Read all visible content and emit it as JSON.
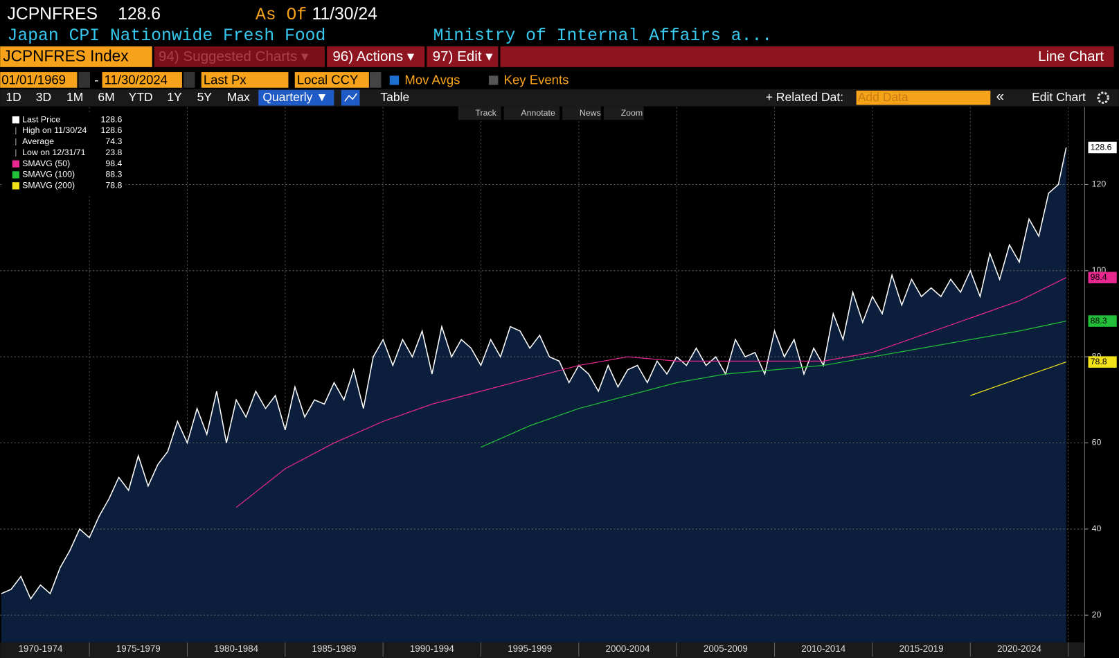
{
  "header": {
    "ticker": "JCPNFRES",
    "last_price": "128.6",
    "as_of_label": "As Of",
    "as_of_date": "11/30/24",
    "name": "Japan CPI Nationwide Fresh Food",
    "source": "Ministry of Internal Affairs a..."
  },
  "toolbar": {
    "security": "JCPNFRES Index",
    "suggested": "94) Suggested Charts ▾",
    "actions": "96) Actions ▾",
    "edit": "97) Edit ▾",
    "chart_type": "Line Chart",
    "start_date": "01/01/1969",
    "date_separator": "-",
    "end_date": "11/30/2024",
    "field": "Last Px",
    "currency": "Local CCY",
    "mov_avgs": "Mov Avgs",
    "key_events": "Key Events",
    "periods": [
      "1D",
      "3D",
      "1M",
      "6M",
      "YTD",
      "1Y",
      "5Y",
      "Max"
    ],
    "frequency": "Quarterly ▼",
    "table": "Table",
    "related": "+ Related Dat:",
    "add_data": "Add Data",
    "collapse": "«",
    "edit_chart": "Edit Chart"
  },
  "chart_tools": [
    "Track",
    "Annotate",
    "News",
    "Zoom"
  ],
  "legend": [
    {
      "label": "Last Price",
      "value": "128.6"
    },
    {
      "label": "High on 11/30/24",
      "value": "128.6"
    },
    {
      "label": "Average",
      "value": "74.3"
    },
    {
      "label": "Low on 12/31/71",
      "value": "23.8"
    },
    {
      "label": "SMAVG (50)",
      "value": "98.4"
    },
    {
      "label": "SMAVG (100)",
      "value": "88.3"
    },
    {
      "label": "SMAVG (200)",
      "value": "78.8"
    }
  ],
  "chart_data": {
    "type": "line",
    "xlim": [
      1970.44,
      2025.84
    ],
    "ylim": [
      13.7,
      138
    ],
    "xticks": [
      {
        "value": 1972.5,
        "label": "1970-1974"
      },
      {
        "value": 1977.5,
        "label": "1975-1979"
      },
      {
        "value": 1982.5,
        "label": "1980-1984"
      },
      {
        "value": 1987.5,
        "label": "1985-1989"
      },
      {
        "value": 1992.5,
        "label": "1990-1994"
      },
      {
        "value": 1997.5,
        "label": "1995-1999"
      },
      {
        "value": 2002.5,
        "label": "2000-2004"
      },
      {
        "value": 2007.5,
        "label": "2005-2009"
      },
      {
        "value": 2012.5,
        "label": "2010-2014"
      },
      {
        "value": 2017.5,
        "label": "2015-2019"
      },
      {
        "value": 2022.5,
        "label": "2020-2024"
      }
    ],
    "xgrid": [
      1975,
      1980,
      1985,
      1990,
      1995,
      2000,
      2005,
      2010,
      2015,
      2020,
      2025
    ],
    "yticks": [
      20,
      40,
      60,
      80,
      100,
      120
    ],
    "grid": true,
    "series": [
      {
        "name": "Last Price",
        "color": "#ffffff",
        "fill": "#0b1e3b",
        "x": [
          1970.5,
          1971,
          1971.5,
          1972,
          1972.5,
          1973,
          1973.5,
          1974,
          1974.5,
          1975,
          1975.5,
          1976,
          1976.5,
          1977,
          1977.5,
          1978,
          1978.5,
          1979,
          1979.5,
          1980,
          1980.5,
          1981,
          1981.5,
          1982,
          1982.5,
          1983,
          1983.5,
          1984,
          1984.5,
          1985,
          1985.5,
          1986,
          1986.5,
          1987,
          1987.5,
          1988,
          1988.5,
          1989,
          1989.5,
          1990,
          1990.5,
          1991,
          1991.5,
          1992,
          1992.5,
          1993,
          1993.5,
          1994,
          1994.5,
          1995,
          1995.5,
          1996,
          1996.5,
          1997,
          1997.5,
          1998,
          1998.5,
          1999,
          1999.5,
          2000,
          2000.5,
          2001,
          2001.5,
          2002,
          2002.5,
          2003,
          2003.5,
          2004,
          2004.5,
          2005,
          2005.5,
          2006,
          2006.5,
          2007,
          2007.5,
          2008,
          2008.5,
          2009,
          2009.5,
          2010,
          2010.5,
          2011,
          2011.5,
          2012,
          2012.5,
          2013,
          2013.5,
          2014,
          2014.5,
          2015,
          2015.5,
          2016,
          2016.5,
          2017,
          2017.5,
          2018,
          2018.5,
          2019,
          2019.5,
          2020,
          2020.5,
          2021,
          2021.5,
          2022,
          2022.5,
          2023,
          2023.5,
          2024,
          2024.5,
          2024.9
        ],
        "values": [
          25,
          26,
          29,
          23.8,
          27,
          25,
          31,
          35,
          40,
          38,
          43,
          47,
          52,
          49,
          57,
          50,
          55,
          58,
          65,
          60,
          68,
          62,
          72,
          60,
          70,
          66,
          72,
          68,
          71,
          63,
          73,
          66,
          70,
          69,
          74,
          70,
          77,
          68,
          80,
          84,
          78,
          84,
          80,
          86,
          76,
          87,
          80,
          84,
          82,
          78,
          84,
          80,
          87,
          86,
          82,
          85,
          80,
          79,
          74,
          78,
          76,
          72,
          78,
          73,
          77,
          78,
          74,
          79,
          76,
          80,
          78,
          82,
          78,
          80,
          76,
          84,
          80,
          81,
          76,
          86,
          80,
          84,
          76,
          82,
          78,
          90,
          84,
          95,
          88,
          94,
          90,
          99,
          92,
          98,
          94,
          96,
          94,
          98,
          95,
          100,
          94,
          104,
          98,
          106,
          102,
          112,
          108,
          118,
          120,
          128.6
        ]
      },
      {
        "name": "SMAVG (50)",
        "color": "#e8288f",
        "x": [
          1982.5,
          1985,
          1987.5,
          1990,
          1992.5,
          1995,
          1997.5,
          2000,
          2002.5,
          2005,
          2007.5,
          2010,
          2012.5,
          2015,
          2017.5,
          2020,
          2022.5,
          2024.9
        ],
        "values": [
          45,
          54,
          60,
          65,
          69,
          72,
          75,
          78,
          80,
          79,
          79,
          79,
          79,
          81,
          85,
          89,
          93,
          98.4
        ]
      },
      {
        "name": "SMAVG (100)",
        "color": "#22c03a",
        "x": [
          1995,
          1997.5,
          2000,
          2002.5,
          2005,
          2007.5,
          2010,
          2012.5,
          2015,
          2017.5,
          2020,
          2022.5,
          2024.9
        ],
        "values": [
          59,
          64,
          68,
          71,
          74,
          76,
          77,
          78,
          80,
          82,
          84,
          86,
          88.3
        ]
      },
      {
        "name": "SMAVG (200)",
        "color": "#f2e21a",
        "x": [
          2020,
          2022.5,
          2024.9
        ],
        "values": [
          71,
          75,
          78.8
        ]
      }
    ]
  }
}
